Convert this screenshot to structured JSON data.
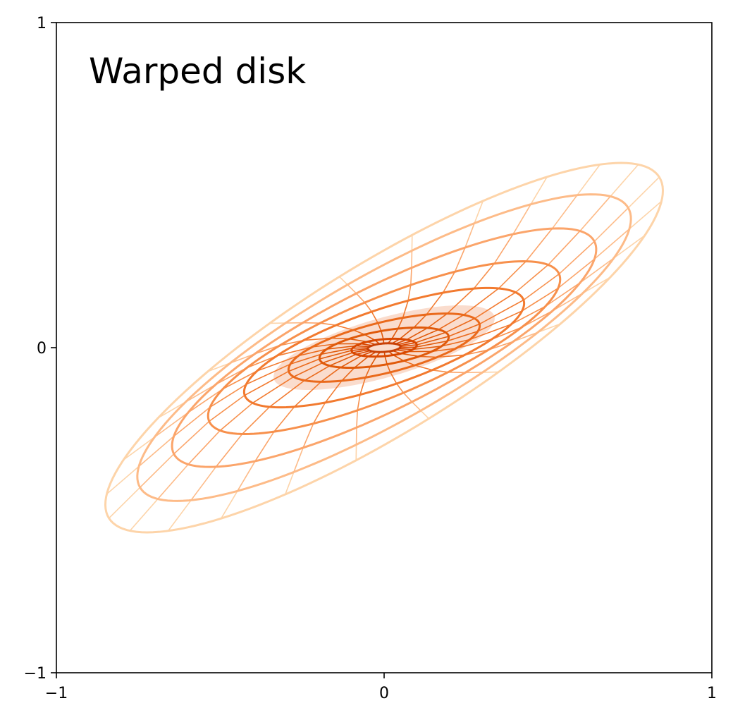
{
  "chart_data": {
    "type": "line",
    "title": "Warped disk",
    "xlabel": "",
    "ylabel": "",
    "xlim": [
      -1,
      1
    ],
    "ylim": [
      -1,
      1
    ],
    "x_ticks": [
      -1,
      0,
      1
    ],
    "y_ticks": [
      -1,
      0,
      1
    ],
    "x_tick_labels": [
      "−1",
      "0",
      "1"
    ],
    "y_tick_labels": [
      "−1",
      "0",
      "1"
    ],
    "grid": false,
    "colormap": "Oranges",
    "title_placement": "top-left inside axes",
    "rings": [
      {
        "radius": 0.05,
        "axis_angle_deg": 4,
        "axis_ratio": 0.26,
        "color": "#c84006"
      },
      {
        "radius": 0.1,
        "axis_angle_deg": 5,
        "axis_ratio": 0.26,
        "color": "#d94801"
      },
      {
        "radius": 0.2,
        "axis_angle_deg": 10,
        "axis_ratio": 0.26,
        "color": "#e05a0b"
      },
      {
        "radius": 0.3,
        "axis_angle_deg": 14,
        "axis_ratio": 0.26,
        "color": "#ea6a1c"
      },
      {
        "radius": 0.45,
        "axis_angle_deg": 19,
        "axis_ratio": 0.26,
        "color": "#f27a2f"
      },
      {
        "radius": 0.58,
        "axis_angle_deg": 23,
        "axis_ratio": 0.26,
        "color": "#f7904c"
      },
      {
        "radius": 0.72,
        "axis_angle_deg": 27,
        "axis_ratio": 0.26,
        "color": "#fba56b"
      },
      {
        "radius": 0.86,
        "axis_angle_deg": 30,
        "axis_ratio": 0.26,
        "color": "#fdbb88"
      },
      {
        "radius": 0.99,
        "axis_angle_deg": 32,
        "axis_ratio": 0.26,
        "color": "#fdd4a9"
      }
    ],
    "spokes_count": 24,
    "center_fill": {
      "radius": 0.35,
      "axis_angle_deg": 16,
      "axis_ratio": 0.26,
      "color": "#e8611a",
      "opacity": 0.22
    }
  }
}
